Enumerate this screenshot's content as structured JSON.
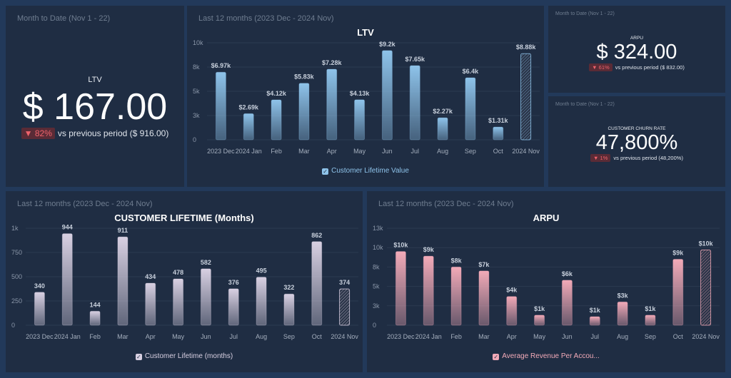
{
  "kpis": {
    "ltv": {
      "range": "Month to Date (Nov 1 - 22)",
      "title": "LTV",
      "value": "$ 167.00",
      "change": "▼ 82%",
      "comparison": "vs previous period ($ 916.00)"
    },
    "arpu": {
      "range": "Month to Date (Nov 1 - 22)",
      "title": "ARPU",
      "value": "$ 324.00",
      "change": "▼ 61%",
      "comparison": "vs previous period ($ 832.00)"
    },
    "churn": {
      "range": "Month to Date (Nov 1 - 22)",
      "title": "CUSTOMER CHURN RATE",
      "value": "47,800%",
      "change": "▼ 1%",
      "comparison": "vs previous period (48,200%)"
    }
  },
  "chart_data": [
    {
      "id": "ltv",
      "type": "bar",
      "range": "Last 12 months (2023 Dec - 2024 Nov)",
      "title": "LTV",
      "categories": [
        "2023 Dec",
        "2024 Jan",
        "Feb",
        "Mar",
        "Apr",
        "May",
        "Jun",
        "Jul",
        "Aug",
        "Sep",
        "Oct",
        "2024 Nov"
      ],
      "values": [
        6970,
        2690,
        4120,
        5830,
        7280,
        4130,
        9200,
        7650,
        2270,
        6400,
        1310,
        8880
      ],
      "data_labels": [
        "$6.97k",
        "$2.69k",
        "$4.12k",
        "$5.83k",
        "$7.28k",
        "$4.13k",
        "$9.2k",
        "$7.65k",
        "$2.27k",
        "$6.4k",
        "$1.31k",
        "$8.88k"
      ],
      "yticks": [
        0,
        2500,
        5000,
        7500,
        10000
      ],
      "ytick_labels": [
        "0",
        "3k",
        "5k",
        "8k",
        "10k"
      ],
      "ylim": [
        0,
        10000
      ],
      "legend": "Customer Lifetime Value",
      "color": "#8ec3ea",
      "partial_last": true,
      "grid": true
    },
    {
      "id": "lifetime",
      "type": "bar",
      "range": "Last 12 months (2023 Dec - 2024 Nov)",
      "title": "CUSTOMER LIFETIME (Months)",
      "categories": [
        "2023 Dec",
        "2024 Jan",
        "Feb",
        "Mar",
        "Apr",
        "May",
        "Jun",
        "Jul",
        "Aug",
        "Sep",
        "Oct",
        "2024 Nov"
      ],
      "values": [
        340,
        944,
        144,
        911,
        434,
        478,
        582,
        376,
        495,
        322,
        862,
        374
      ],
      "data_labels": [
        "340",
        "944",
        "144",
        "911",
        "434",
        "478",
        "582",
        "376",
        "495",
        "322",
        "862",
        "374"
      ],
      "yticks": [
        0,
        250,
        500,
        750,
        1000
      ],
      "ytick_labels": [
        "0",
        "250",
        "500",
        "750",
        "1k"
      ],
      "ylim": [
        0,
        1000
      ],
      "legend": "Customer Lifetime (months)",
      "color": "#d8d0e2",
      "partial_last": true,
      "grid": true
    },
    {
      "id": "arpu",
      "type": "bar",
      "range": "Last 12 months (2023 Dec - 2024 Nov)",
      "title": "ARPU",
      "categories": [
        "2023 Dec",
        "2024 Jan",
        "Feb",
        "Mar",
        "Apr",
        "May",
        "Jun",
        "Jul",
        "Aug",
        "Sep",
        "Oct",
        "2024 Nov"
      ],
      "values": [
        9500,
        8900,
        7500,
        7000,
        3700,
        1300,
        5800,
        1100,
        3000,
        1300,
        8500,
        9700
      ],
      "data_labels": [
        "$10k",
        "$9k",
        "$8k",
        "$7k",
        "$4k",
        "$1k",
        "$6k",
        "$1k",
        "$3k",
        "$1k",
        "$9k",
        "$10k"
      ],
      "yticks": [
        0,
        2500,
        5000,
        7500,
        10000,
        12500
      ],
      "ytick_labels": [
        "0",
        "3k",
        "5k",
        "8k",
        "10k",
        "13k"
      ],
      "ylim": [
        0,
        12500
      ],
      "legend": "Average Revenue Per Accou...",
      "color": "#f2aab8",
      "partial_last": true,
      "grid": true
    }
  ]
}
